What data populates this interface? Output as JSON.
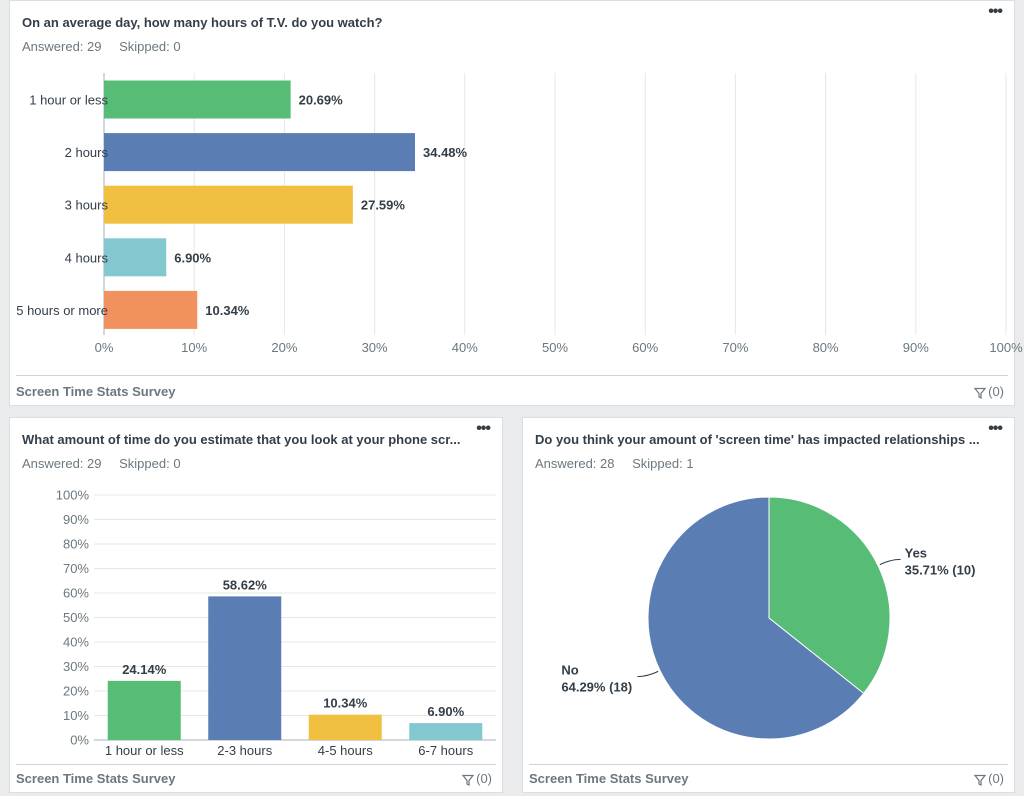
{
  "survey_name": "Screen Time Stats Survey",
  "more_label": "•••",
  "filter_label": "(0)",
  "q1": {
    "title": "On an average day, how many hours of T.V. do you watch?",
    "answered": "Answered: 29",
    "skipped": "Skipped: 0"
  },
  "q2": {
    "title": "What amount of time do you estimate that you look at your phone scr...",
    "answered": "Answered: 29",
    "skipped": "Skipped: 0"
  },
  "q3": {
    "title": "Do you think your amount of 'screen time' has impacted relationships ...",
    "answered": "Answered: 28",
    "skipped": "Skipped: 1"
  },
  "chart_data": [
    {
      "type": "bar",
      "orientation": "horizontal",
      "categories": [
        "1 hour or less",
        "2 hours",
        "3 hours",
        "4 hours",
        "5 hours or more"
      ],
      "values": [
        20.69,
        34.48,
        27.59,
        6.9,
        10.34
      ],
      "value_labels": [
        "20.69%",
        "34.48%",
        "27.59%",
        "6.90%",
        "10.34%"
      ],
      "colors": [
        "#57bd76",
        "#5a7db4",
        "#f2c040",
        "#84c8cf",
        "#f0915e"
      ],
      "xlim": [
        0,
        100
      ],
      "ticks": [
        "0%",
        "10%",
        "20%",
        "30%",
        "40%",
        "50%",
        "60%",
        "70%",
        "80%",
        "90%",
        "100%"
      ]
    },
    {
      "type": "bar",
      "orientation": "vertical",
      "categories": [
        "1 hour or less",
        "2-3 hours",
        "4-5 hours",
        "6-7 hours"
      ],
      "values": [
        24.14,
        58.62,
        10.34,
        6.9
      ],
      "value_labels": [
        "24.14%",
        "58.62%",
        "10.34%",
        "6.90%"
      ],
      "colors": [
        "#57bd76",
        "#5a7db4",
        "#f2c040",
        "#84c8cf"
      ],
      "ylim": [
        0,
        100
      ],
      "ticks": [
        "0%",
        "10%",
        "20%",
        "30%",
        "40%",
        "50%",
        "60%",
        "70%",
        "80%",
        "90%",
        "100%"
      ]
    },
    {
      "type": "pie",
      "categories": [
        "Yes",
        "No"
      ],
      "values": [
        35.71,
        64.29
      ],
      "counts": [
        10,
        18
      ],
      "value_labels": [
        "35.71% (10)",
        "64.29% (18)"
      ],
      "colors": [
        "#57bd76",
        "#5a7db4"
      ]
    }
  ]
}
